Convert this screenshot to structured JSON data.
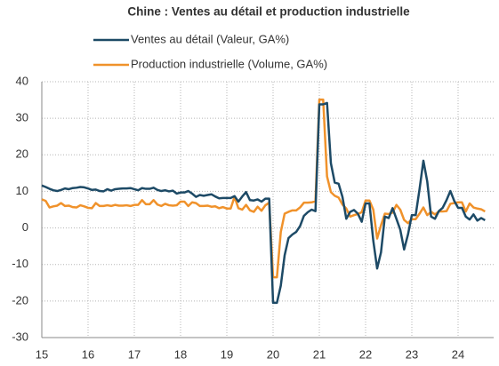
{
  "chart_data": {
    "type": "line",
    "title": "Chine : Ventes au détail et production industrielle",
    "categories": [
      "15",
      null,
      null,
      null,
      null,
      null,
      null,
      null,
      null,
      null,
      null,
      null,
      "16",
      null,
      null,
      null,
      null,
      null,
      null,
      null,
      null,
      null,
      null,
      null,
      "17",
      null,
      null,
      null,
      null,
      null,
      null,
      null,
      null,
      null,
      null,
      null,
      "18",
      null,
      null,
      null,
      null,
      null,
      null,
      null,
      null,
      null,
      null,
      null,
      "19",
      null,
      null,
      null,
      null,
      null,
      null,
      null,
      null,
      null,
      null,
      null,
      "20",
      null,
      null,
      null,
      null,
      null,
      null,
      null,
      null,
      null,
      null,
      null,
      "21",
      null,
      null,
      null,
      null,
      null,
      null,
      null,
      null,
      null,
      null,
      null,
      "22",
      null,
      null,
      null,
      null,
      null,
      null,
      null,
      null,
      null,
      null,
      null,
      "23",
      null,
      null,
      null,
      null,
      null,
      null,
      null,
      null,
      null,
      null,
      null,
      "24",
      null,
      null,
      null,
      null,
      null,
      null,
      null
    ],
    "series": [
      {
        "name": "Ventes au détail (Valeur, GA%)",
        "color": "#1d4a66",
        "values": [
          11.6,
          11.2,
          10.7,
          10.3,
          10.1,
          10.4,
          10.8,
          10.6,
          10.9,
          11.0,
          11.2,
          11.1,
          10.8,
          10.4,
          10.5,
          10.1,
          10.0,
          10.6,
          10.2,
          10.6,
          10.7,
          10.8,
          10.8,
          10.9,
          10.6,
          10.3,
          10.9,
          10.7,
          10.7,
          11.0,
          10.4,
          10.1,
          10.3,
          10.0,
          10.2,
          9.4,
          9.7,
          9.7,
          10.1,
          9.4,
          8.5,
          9.0,
          8.8,
          9.0,
          9.2,
          8.6,
          8.1,
          8.2,
          8.2,
          8.2,
          8.7,
          7.2,
          8.6,
          9.8,
          7.6,
          7.5,
          7.8,
          7.2,
          8.0,
          8.0,
          -20.5,
          -20.5,
          -15.8,
          -7.5,
          -2.8,
          -1.8,
          -1.1,
          0.5,
          3.3,
          4.3,
          5.0,
          4.6,
          33.8,
          33.8,
          34.2,
          17.7,
          12.4,
          12.1,
          8.5,
          2.5,
          4.4,
          4.9,
          3.9,
          1.7,
          6.7,
          6.7,
          -3.5,
          -11.1,
          -6.7,
          3.1,
          2.7,
          5.4,
          2.5,
          -0.5,
          -5.9,
          -1.8,
          3.5,
          3.5,
          10.6,
          18.4,
          12.7,
          3.1,
          2.5,
          4.6,
          5.5,
          7.6,
          10.1,
          7.4,
          5.5,
          5.5,
          3.1,
          2.3,
          3.7,
          2.0,
          2.7,
          2.1
        ]
      },
      {
        "name": "Production industrielle (Volume, GA%)",
        "color": "#f0922b",
        "values": [
          7.8,
          7.4,
          5.6,
          5.9,
          6.1,
          6.8,
          6.0,
          6.1,
          5.7,
          5.6,
          6.2,
          5.9,
          5.5,
          5.4,
          6.8,
          6.0,
          6.0,
          6.2,
          6.0,
          6.3,
          6.1,
          6.1,
          6.2,
          6.0,
          6.3,
          6.3,
          7.6,
          6.5,
          6.5,
          7.6,
          6.4,
          6.0,
          6.6,
          6.2,
          6.1,
          6.2,
          7.2,
          7.2,
          6.0,
          7.0,
          6.8,
          6.0,
          6.0,
          6.1,
          5.8,
          5.9,
          5.4,
          5.7,
          5.3,
          5.3,
          8.5,
          5.4,
          5.0,
          6.3,
          4.8,
          4.4,
          5.8,
          4.7,
          6.2,
          6.9,
          -13.5,
          -13.5,
          -1.1,
          3.9,
          4.4,
          4.8,
          4.8,
          5.6,
          6.9,
          6.9,
          7.0,
          7.3,
          35.1,
          35.1,
          14.1,
          9.8,
          8.8,
          8.3,
          6.4,
          5.3,
          3.1,
          3.5,
          3.8,
          4.3,
          7.5,
          7.5,
          5.0,
          -2.9,
          0.7,
          3.9,
          3.8,
          4.2,
          6.3,
          5.0,
          2.2,
          1.3,
          2.4,
          2.4,
          3.9,
          5.6,
          3.5,
          4.4,
          3.7,
          4.5,
          4.5,
          4.6,
          6.6,
          6.8,
          7.0,
          7.0,
          4.5,
          6.7,
          5.6,
          5.3,
          5.1,
          4.5
        ]
      }
    ],
    "ylim": [
      -30,
      40
    ],
    "yticks": [
      -30,
      -20,
      -10,
      0,
      10,
      20,
      30,
      40
    ],
    "grid": true
  }
}
